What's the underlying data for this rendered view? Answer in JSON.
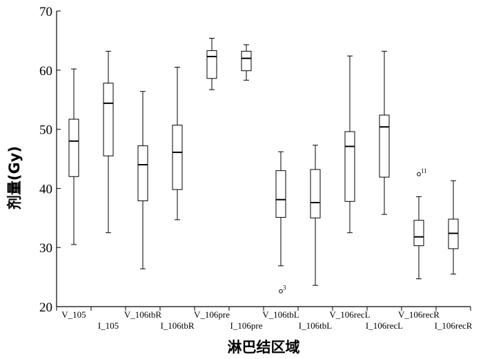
{
  "chart_data": {
    "type": "box",
    "xlabel": "淋巴结区域",
    "ylabel": "剂量(Gy)",
    "ylim": [
      20,
      70
    ],
    "yticks": [
      20,
      30,
      40,
      50,
      60,
      70
    ],
    "grid": false,
    "categories": [
      "V_105",
      "I_105",
      "V_106tbR",
      "I_106tbR",
      "V_106pre",
      "I_106pre",
      "V_106tbL",
      "I_106tbL",
      "V_106recL",
      "I_106recL",
      "V_106recR",
      "I_106recR"
    ],
    "boxes": [
      {
        "min": 30.5,
        "q1": 42.0,
        "median": 48.0,
        "q3": 51.7,
        "max": 60.2
      },
      {
        "min": 32.5,
        "q1": 45.5,
        "median": 54.4,
        "q3": 57.8,
        "max": 63.2
      },
      {
        "min": 26.4,
        "q1": 37.9,
        "median": 44.0,
        "q3": 47.2,
        "max": 56.4
      },
      {
        "min": 34.7,
        "q1": 39.8,
        "median": 46.1,
        "q3": 50.7,
        "max": 60.5
      },
      {
        "min": 56.7,
        "q1": 58.6,
        "median": 62.3,
        "q3": 63.3,
        "max": 65.4
      },
      {
        "min": 58.3,
        "q1": 59.9,
        "median": 62.0,
        "q3": 63.2,
        "max": 64.3
      },
      {
        "min": 26.9,
        "q1": 35.1,
        "median": 38.1,
        "q3": 43.0,
        "max": 46.2
      },
      {
        "min": 23.6,
        "q1": 35.0,
        "median": 37.6,
        "q3": 43.2,
        "max": 47.3
      },
      {
        "min": 32.5,
        "q1": 37.8,
        "median": 47.1,
        "q3": 49.6,
        "max": 62.4
      },
      {
        "min": 35.6,
        "q1": 41.9,
        "median": 50.4,
        "q3": 52.4,
        "max": 63.2
      },
      {
        "min": 24.7,
        "q1": 30.3,
        "median": 31.8,
        "q3": 34.6,
        "max": 38.6
      },
      {
        "min": 25.5,
        "q1": 29.8,
        "median": 32.4,
        "q3": 34.8,
        "max": 41.3
      }
    ],
    "outliers": [
      {
        "category": "V_106tbL",
        "value": 22.6,
        "label": "3"
      },
      {
        "category": "V_106recR",
        "value": 42.4,
        "label": "11"
      }
    ]
  }
}
